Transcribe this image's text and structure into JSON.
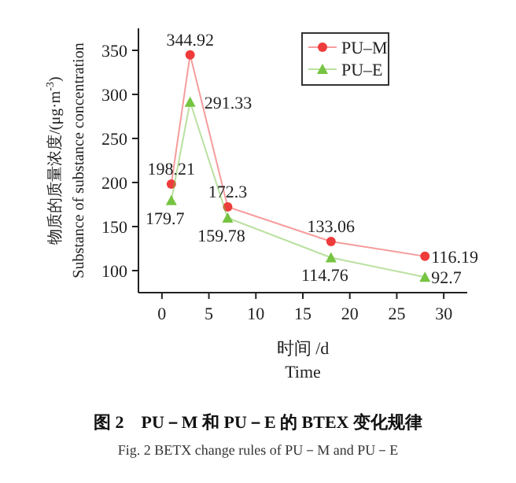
{
  "chart_data": {
    "type": "line",
    "xlabel": "时间 /d\nTime",
    "ylabel": "物质的质量浓度/(μg·m$^{-3}$)\nSubstance of substance concentration",
    "annotations": [
      "图 2　PU－M 和 PU－E 的 BTEX 变化规律",
      "Fig. 2 BETX change rules of PU－M and PU－E"
    ],
    "x": [
      1,
      3,
      7,
      18,
      28
    ],
    "series": [
      {
        "name": "PU–M",
        "color": "#ee3b3b",
        "marker": "circle",
        "values": [
          198.21,
          344.92,
          172.3,
          133.06,
          116.19
        ]
      },
      {
        "name": "PU–E",
        "color": "#76c442",
        "marker": "triangle",
        "values": [
          179.7,
          291.33,
          159.78,
          114.76,
          92.7
        ]
      }
    ],
    "xlim": [
      -2.5,
      32.5
    ],
    "ylim": [
      75,
      375
    ],
    "xticks": [
      0,
      5,
      10,
      15,
      20,
      25,
      30
    ],
    "yticks": [
      100,
      150,
      200,
      250,
      300,
      350
    ],
    "data_labels": true,
    "legend": "top right",
    "grid": false,
    "line_style": "solid"
  }
}
